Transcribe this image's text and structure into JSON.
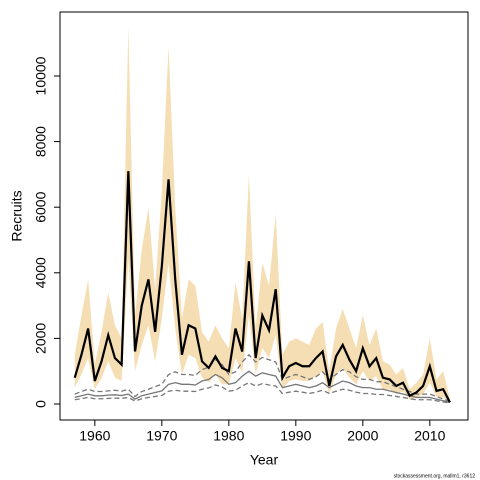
{
  "chart_data": {
    "type": "line",
    "x_label": "Year",
    "y_label": "Recruits",
    "footnote": "stockassessment.org, mallm1, r3612",
    "x": [
      1957,
      1958,
      1959,
      1960,
      1961,
      1962,
      1963,
      1964,
      1965,
      1966,
      1967,
      1968,
      1969,
      1970,
      1971,
      1972,
      1973,
      1974,
      1975,
      1976,
      1977,
      1978,
      1979,
      1980,
      1981,
      1982,
      1983,
      1984,
      1985,
      1986,
      1987,
      1988,
      1989,
      1990,
      1991,
      1992,
      1993,
      1994,
      1995,
      1996,
      1997,
      1998,
      1999,
      2000,
      2001,
      2002,
      2003,
      2004,
      2005,
      2006,
      2007,
      2008,
      2009,
      2010,
      2011,
      2012,
      2013
    ],
    "xlim": [
      1954.8,
      2015.7
    ],
    "xticks": [
      1960,
      1970,
      1980,
      1990,
      2000,
      2010
    ],
    "ylim": [
      -488,
      11951
    ],
    "yticks": [
      0,
      2000,
      4000,
      6000,
      8000,
      10000
    ],
    "series": [
      {
        "color": "#000000",
        "linestyle": "solid",
        "band_color": "#f5deb3",
        "values": [
          800,
          1500,
          2300,
          700,
          1300,
          2100,
          1400,
          1200,
          7100,
          1600,
          3000,
          3800,
          2200,
          4200,
          6850,
          3800,
          1500,
          2400,
          2300,
          1300,
          1100,
          1450,
          1100,
          1000,
          2300,
          1600,
          4350,
          1400,
          2700,
          2250,
          3500,
          800,
          1150,
          1250,
          1150,
          1150,
          1400,
          1600,
          550,
          1450,
          1800,
          1350,
          1000,
          1700,
          1150,
          1400,
          800,
          750,
          550,
          650,
          250,
          350,
          550,
          1150,
          400,
          450,
          50
        ],
        "lower": [
          500,
          900,
          1400,
          450,
          800,
          1300,
          800,
          700,
          4400,
          1000,
          1800,
          2400,
          1300,
          2600,
          4300,
          2300,
          900,
          1500,
          1400,
          800,
          650,
          900,
          600,
          600,
          1400,
          950,
          2700,
          900,
          1700,
          1400,
          2100,
          450,
          700,
          750,
          700,
          700,
          850,
          1000,
          300,
          900,
          1100,
          800,
          600,
          1000,
          700,
          850,
          450,
          450,
          300,
          380,
          130,
          200,
          300,
          650,
          220,
          200,
          20
        ],
        "upper": [
          1500,
          2700,
          3800,
          1200,
          2200,
          3400,
          2400,
          2000,
          11500,
          2700,
          4700,
          6000,
          3500,
          6500,
          10900,
          6000,
          2600,
          3800,
          3600,
          2200,
          1900,
          2400,
          2000,
          1700,
          3700,
          2600,
          7000,
          2300,
          4300,
          3600,
          5800,
          1500,
          1900,
          2000,
          1900,
          1800,
          2300,
          2500,
          1000,
          2300,
          2900,
          2300,
          1700,
          2700,
          1800,
          2300,
          1300,
          1200,
          900,
          1100,
          450,
          650,
          900,
          2000,
          750,
          1000,
          150
        ]
      },
      {
        "color": "#777777",
        "linestyle": "solid",
        "values": [
          200,
          250,
          300,
          250,
          250,
          270,
          280,
          260,
          300,
          150,
          250,
          300,
          350,
          400,
          600,
          650,
          600,
          600,
          580,
          700,
          750,
          900,
          800,
          600,
          650,
          850,
          1000,
          850,
          950,
          900,
          850,
          500,
          550,
          600,
          550,
          500,
          550,
          650,
          500,
          600,
          700,
          650,
          550,
          500,
          500,
          450,
          450,
          400,
          350,
          300,
          250,
          200,
          200,
          200,
          150,
          100,
          50
        ]
      },
      {
        "color": "#777777",
        "linestyle": "dashed",
        "values": [
          130,
          160,
          200,
          160,
          160,
          170,
          180,
          170,
          200,
          90,
          160,
          200,
          230,
          260,
          390,
          420,
          390,
          390,
          380,
          450,
          490,
          580,
          520,
          390,
          420,
          550,
          650,
          550,
          620,
          580,
          550,
          320,
          360,
          390,
          360,
          320,
          360,
          420,
          320,
          390,
          450,
          420,
          360,
          320,
          320,
          290,
          290,
          260,
          230,
          200,
          160,
          130,
          130,
          130,
          100,
          60,
          30
        ]
      },
      {
        "color": "#777777",
        "linestyle": "dashed",
        "values": [
          300,
          380,
          450,
          380,
          380,
          400,
          420,
          390,
          450,
          230,
          380,
          450,
          530,
          600,
          900,
          980,
          900,
          900,
          870,
          1050,
          1120,
          1350,
          1200,
          900,
          980,
          1280,
          1500,
          1280,
          1420,
          1350,
          1280,
          750,
          830,
          900,
          830,
          750,
          830,
          980,
          750,
          900,
          1050,
          980,
          830,
          750,
          750,
          680,
          680,
          600,
          530,
          450,
          380,
          300,
          300,
          300,
          230,
          150,
          80
        ]
      }
    ]
  }
}
